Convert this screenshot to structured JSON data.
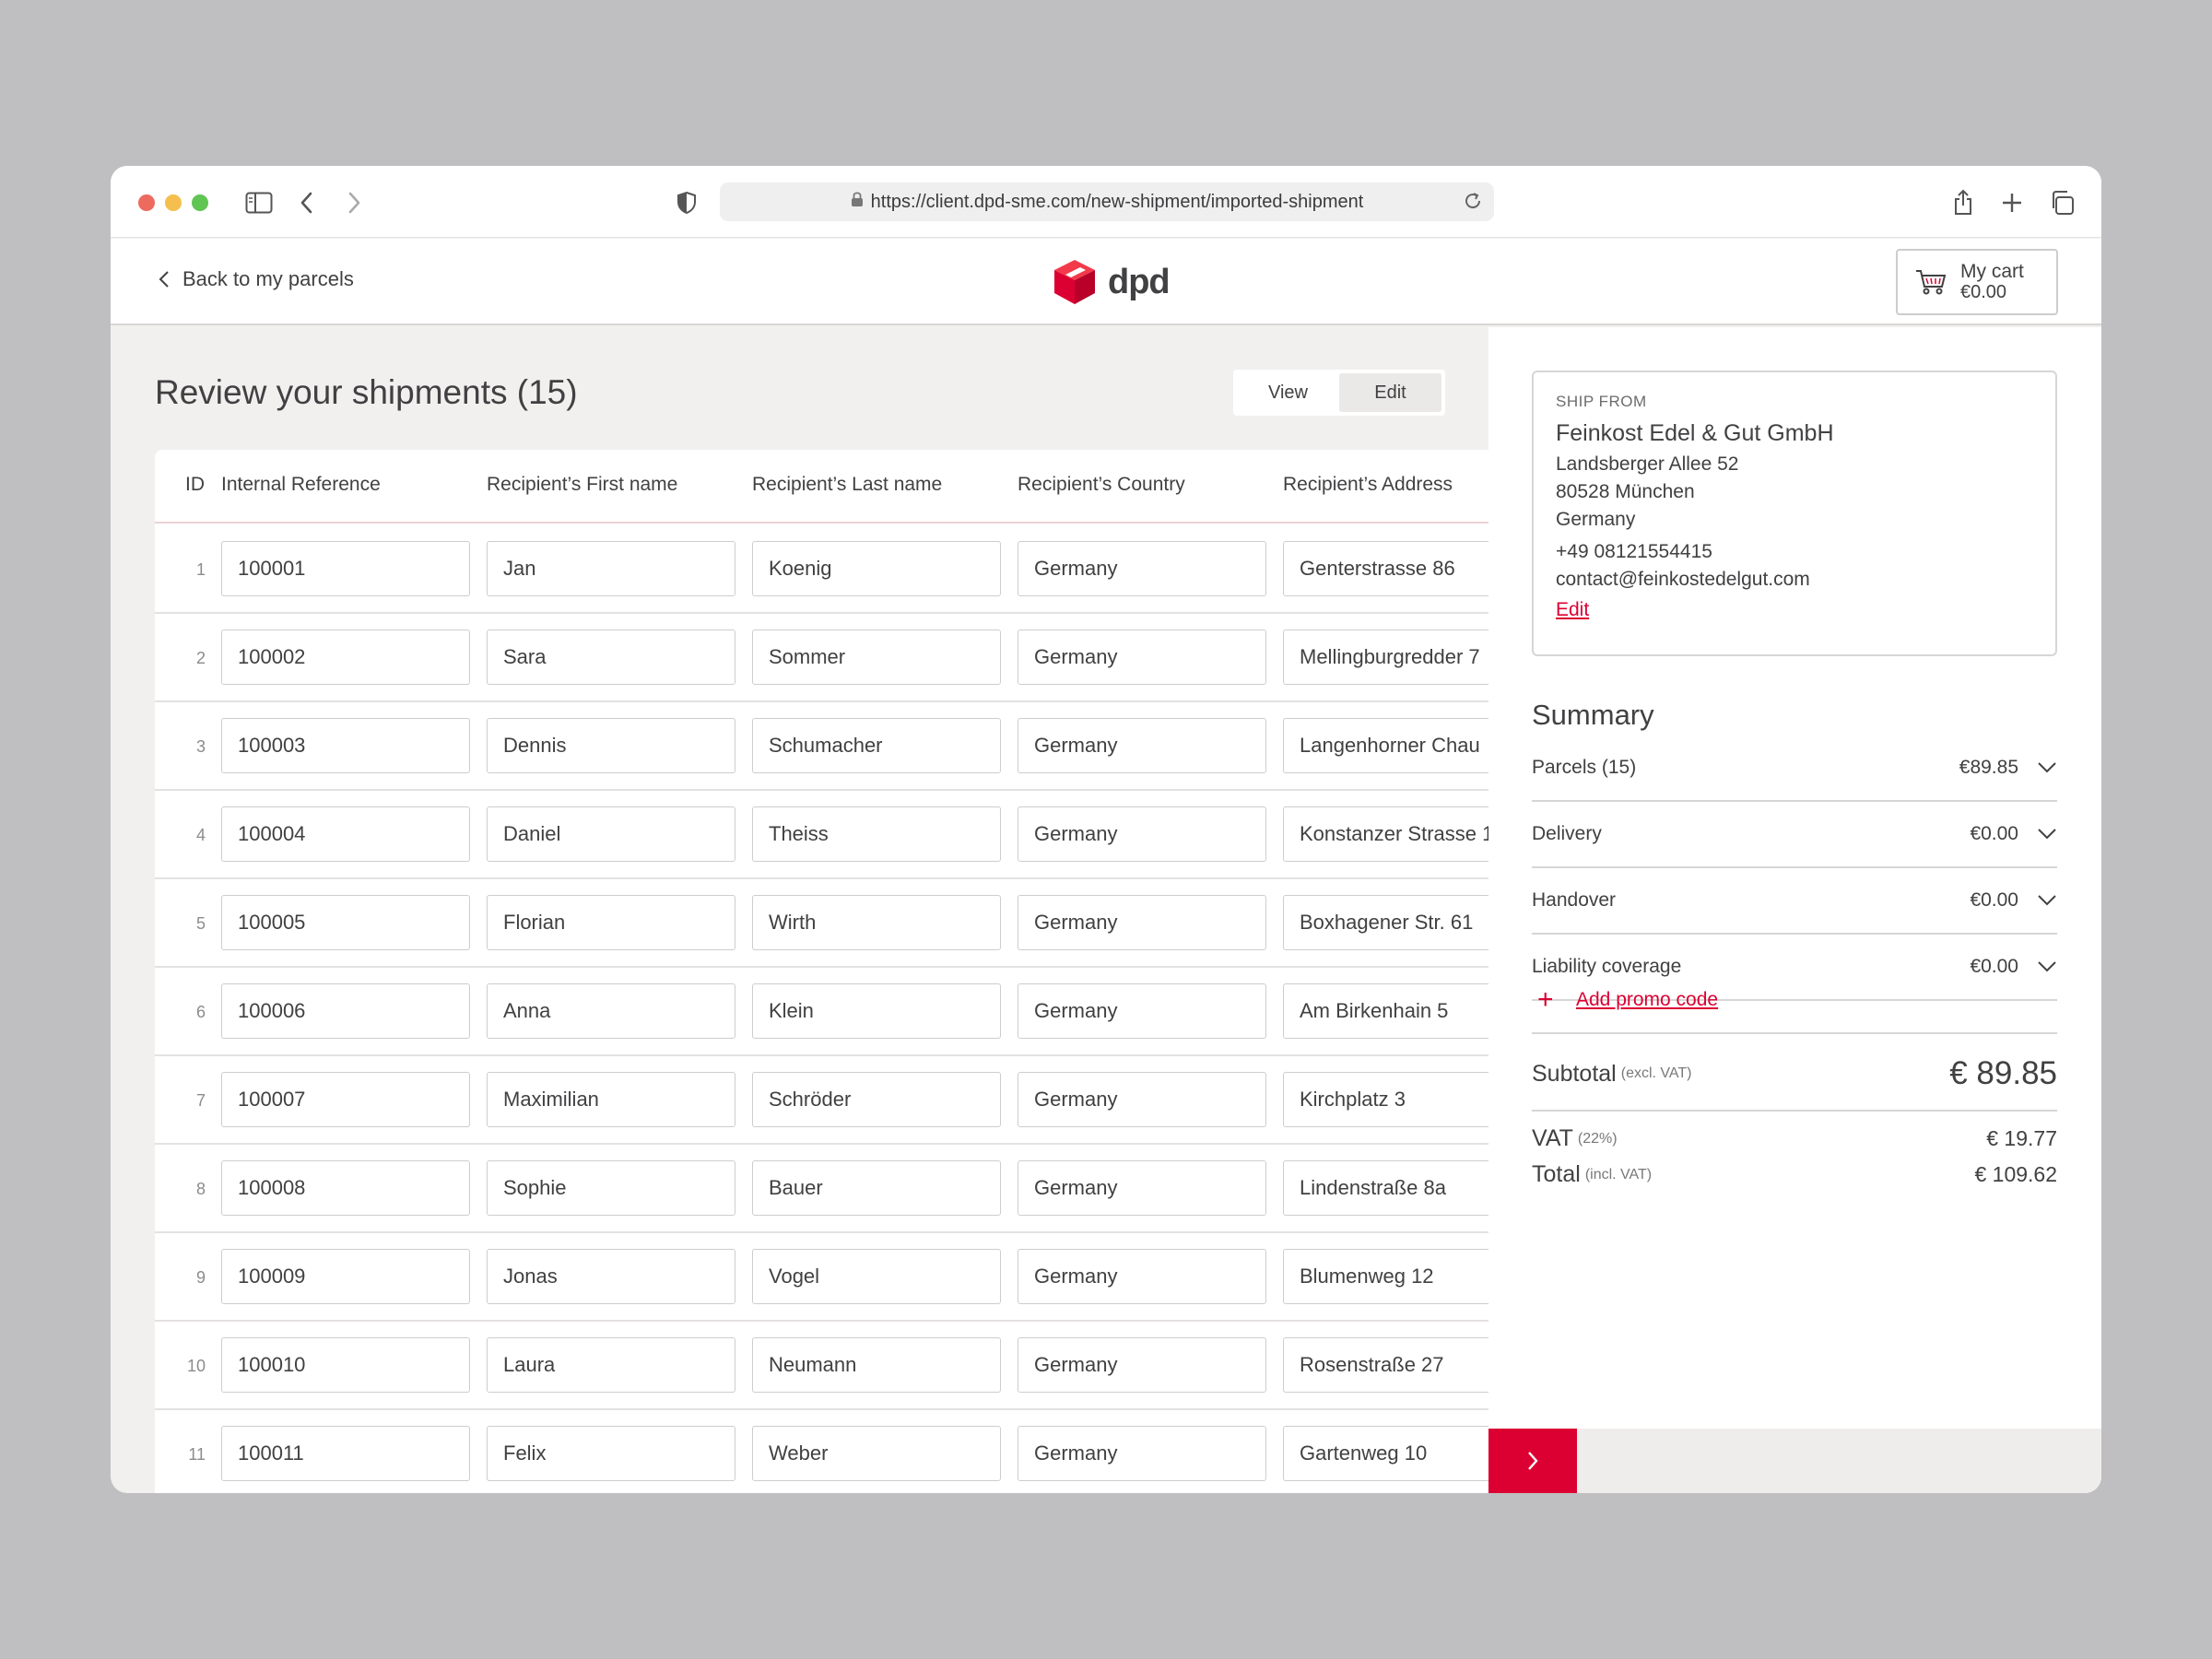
{
  "browser": {
    "url": "https://client.dpd-sme.com/new-shipment/imported-shipment"
  },
  "header": {
    "back_label": "Back to my parcels",
    "logo_text": "dpd",
    "cart_title": "My cart",
    "cart_amount": "€0.00"
  },
  "main": {
    "title": "Review your shipments (15)",
    "view_toggle": {
      "view": "View",
      "edit": "Edit",
      "selected": "Edit"
    },
    "columns": [
      "ID",
      "Internal Reference",
      "Recipient’s First name",
      "Recipient’s Last name",
      "Recipient’s Country",
      "Recipient’s Address"
    ],
    "rows": [
      {
        "id": "1",
        "ref": "100001",
        "first": "Jan",
        "last": "Koenig",
        "country": "Germany",
        "address": "Genterstrasse 86"
      },
      {
        "id": "2",
        "ref": "100002",
        "first": "Sara",
        "last": "Sommer",
        "country": "Germany",
        "address": "Mellingburgredder 7"
      },
      {
        "id": "3",
        "ref": "100003",
        "first": "Dennis",
        "last": "Schumacher",
        "country": "Germany",
        "address": "Langenhorner Chau"
      },
      {
        "id": "4",
        "ref": "100004",
        "first": "Daniel",
        "last": "Theiss",
        "country": "Germany",
        "address": "Konstanzer Strasse 1"
      },
      {
        "id": "5",
        "ref": "100005",
        "first": "Florian",
        "last": "Wirth",
        "country": "Germany",
        "address": "Boxhagener Str. 61"
      },
      {
        "id": "6",
        "ref": "100006",
        "first": "Anna",
        "last": "Klein",
        "country": "Germany",
        "address": "Am Birkenhain 5"
      },
      {
        "id": "7",
        "ref": "100007",
        "first": "Maximilian",
        "last": "Schröder",
        "country": "Germany",
        "address": "Kirchplatz 3"
      },
      {
        "id": "8",
        "ref": "100008",
        "first": "Sophie",
        "last": "Bauer",
        "country": "Germany",
        "address": "Lindenstraße 8a"
      },
      {
        "id": "9",
        "ref": "100009",
        "first": "Jonas",
        "last": "Vogel",
        "country": "Germany",
        "address": "Blumenweg 12"
      },
      {
        "id": "10",
        "ref": "100010",
        "first": "Laura",
        "last": "Neumann",
        "country": "Germany",
        "address": "Rosenstraße 27"
      },
      {
        "id": "11",
        "ref": "100011",
        "first": "Felix",
        "last": "Weber",
        "country": "Germany",
        "address": "Gartenweg 10"
      }
    ]
  },
  "ship_from": {
    "label": "SHIP FROM",
    "company": "Feinkost Edel & Gut GmbH",
    "street": "Landsberger Allee 52",
    "city": "80528 München",
    "country": "Germany",
    "phone": "+49 08121554415",
    "email": "contact@feinkostedelgut.com",
    "edit_label": "Edit"
  },
  "summary": {
    "title": "Summary",
    "items": [
      {
        "label": "Parcels (15)",
        "value": "€89.85"
      },
      {
        "label": "Delivery",
        "value": "€0.00"
      },
      {
        "label": "Handover",
        "value": "€0.00"
      },
      {
        "label": "Liability coverage",
        "value": "€0.00"
      }
    ],
    "promo_label": "Add promo code",
    "subtotal_label": "Subtotal",
    "subtotal_note": "(excl. VAT)",
    "subtotal_value": "€ 89.85",
    "vat_label": "VAT",
    "vat_note": "(22%)",
    "vat_value": "€ 19.77",
    "total_label": "Total",
    "total_note": "(incl. VAT)",
    "total_value": "€ 109.62"
  },
  "colors": {
    "brand": "#dc0032",
    "background": "#f2efef",
    "text": "#414042"
  },
  "icons": {
    "sidebar_toggle": "sidebar-icon",
    "back": "chevron-left-icon",
    "forward": "chevron-right-icon",
    "privacy": "shield-icon",
    "share": "share-icon",
    "new_tab": "plus-icon",
    "tabs": "tabs-icon",
    "cart": "cart-icon",
    "expand": "chevron-down-icon",
    "next": "chevron-right-icon"
  }
}
